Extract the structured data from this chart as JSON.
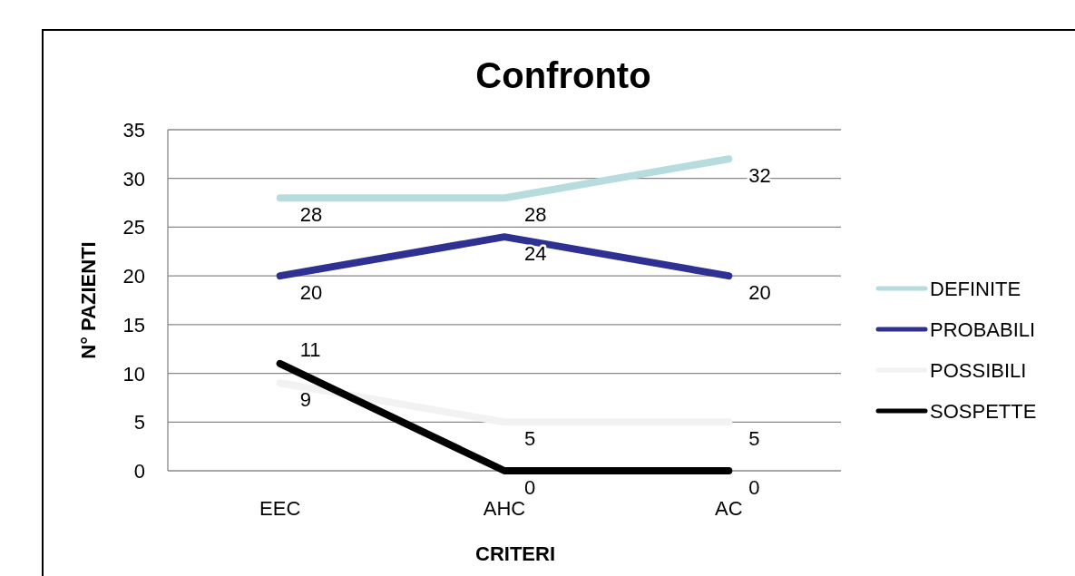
{
  "chart_data": {
    "type": "line",
    "title": "Confronto",
    "xlabel": "CRITERI",
    "ylabel": "N° PAZIENTI",
    "categories": [
      "EEC",
      "AHC",
      "AC"
    ],
    "series": [
      {
        "name": "DEFINITE",
        "color": "#b6dcdd",
        "values": [
          28,
          28,
          32
        ]
      },
      {
        "name": "PROBABILI",
        "color": "#2e3192",
        "values": [
          20,
          24,
          20
        ]
      },
      {
        "name": "POSSIBILI",
        "color": "#f2f2f2",
        "values": [
          9,
          5,
          5
        ]
      },
      {
        "name": "SOSPETTE",
        "color": "#000000",
        "values": [
          11,
          0,
          0
        ]
      }
    ],
    "ylim": [
      0,
      35
    ],
    "yticks": [
      0,
      5,
      10,
      15,
      20,
      25,
      30,
      35
    ],
    "grid": "y",
    "legend": "right",
    "data_labels": true,
    "marker": "none",
    "line_style": "solid"
  }
}
